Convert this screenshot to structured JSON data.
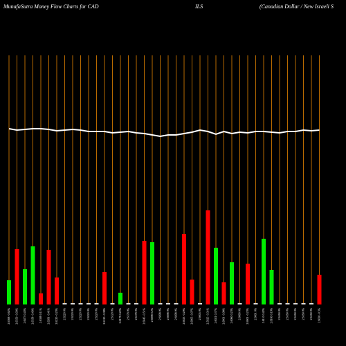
{
  "chart_data": {
    "type": "bar",
    "title": "MunafaSutra  Money  Flow  Charts for CAD",
    "subtitle": "ILS",
    "annotation": "(Canadian  Dollar / New  Israeli  S",
    "categories": [
      "2.6368 -0.62%",
      "2.6359 -0.03%",
      "2.6473 0.43%",
      "2.6358 -0.43%",
      "2.6388 0.11%",
      "2.6281 -0.41%",
      "2.6220 -0.23%",
      "2.6220 0%",
      "2.6220 0%",
      "2.6220 0%",
      "2.6220 0%",
      "2.6220 0%",
      "2.6120 -0.38%",
      "2.6120 0%",
      "2.6178 0.22%",
      "2.6178 0%",
      "2.6178 0%",
      "2.6045 -0.51%",
      "2.6098 0.2%",
      "2.6098 0%",
      "2.6098 0%",
      "2.6098 0%",
      "2.6023 -0.29%",
      "2.6005 -0.07%",
      "2.6005 0%",
      "2.5925 -0.31%",
      "2.6021 0.37%",
      "2.6001 -0.08%",
      "2.6060 0.23%",
      "2.6060 0%",
      "2.6001 -0.23%",
      "2.6001 0%",
      "2.6110 0.42%",
      "2.6160 0.19%",
      "2.6160 0%",
      "2.6160 0%",
      "2.6160 0%",
      "2.6160 0%",
      "2.6160 0%",
      "2.6030 -0.5%"
    ],
    "series": [
      {
        "name": "Money Flow",
        "colors": [
          "#00ee00",
          "#ff0000",
          "#00ee00",
          "#00ee00",
          "#ff0000",
          "#ff0000",
          "#ff0000",
          "#dddddd",
          "#dddddd",
          "#dddddd",
          "#dddddd",
          "#dddddd",
          "#ff0000",
          "#dddddd",
          "#00ee00",
          "#dddddd",
          "#dddddd",
          "#ff0000",
          "#00ee00",
          "#dddddd",
          "#dddddd",
          "#dddddd",
          "#ff0000",
          "#ff0000",
          "#dddddd",
          "#ff0000",
          "#00ee00",
          "#ff0000",
          "#00ee00",
          "#dddddd",
          "#ff0000",
          "#dddddd",
          "#00ee00",
          "#00ee00",
          "#dddddd",
          "#dddddd",
          "#dddddd",
          "#dddddd",
          "#dddddd",
          "#ff0000"
        ],
        "values": [
          35,
          80,
          51,
          84,
          16,
          79,
          39,
          2,
          2,
          2,
          2,
          2,
          47,
          2,
          17,
          2,
          2,
          92,
          90,
          2,
          2,
          2,
          102,
          36,
          2,
          136,
          82,
          32,
          61,
          2,
          59,
          2,
          95,
          50,
          2,
          2,
          2,
          2,
          2,
          43
        ]
      },
      {
        "name": "Price",
        "type": "line",
        "color": "#ffffff",
        "values": [
          254,
          252,
          253,
          254,
          254,
          253,
          251,
          252,
          253,
          252,
          250,
          250,
          250,
          248,
          249,
          250,
          248,
          247,
          245,
          243,
          245,
          245,
          247,
          249,
          252,
          250,
          246,
          250,
          247,
          249,
          248,
          250,
          250,
          249,
          248,
          250,
          250,
          252,
          251,
          252
        ]
      }
    ],
    "ylim": [
      0,
      440
    ]
  }
}
